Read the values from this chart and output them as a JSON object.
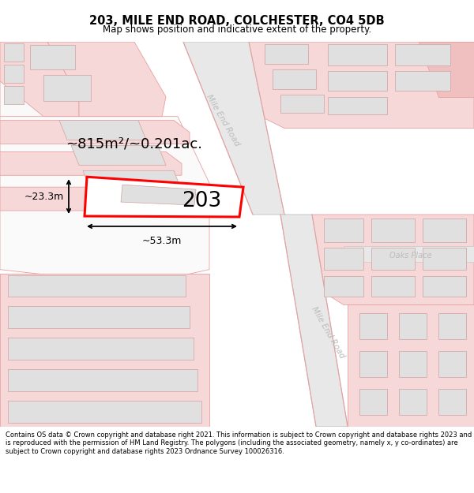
{
  "title": "203, MILE END ROAD, COLCHESTER, CO4 5DB",
  "subtitle": "Map shows position and indicative extent of the property.",
  "footer": "Contains OS data © Crown copyright and database right 2021. This information is subject to Crown copyright and database rights 2023 and is reproduced with the permission of HM Land Registry. The polygons (including the associated geometry, namely x, y co-ordinates) are subject to Crown copyright and database rights 2023 Ordnance Survey 100026316.",
  "area_text": "~815m²/~0.201ac.",
  "width_text": "~53.3m",
  "height_text": "~23.3m",
  "plot_number": "203",
  "road_name_upper": "Mile End Road",
  "road_name_lower": "Mile End Road",
  "road_name_oaks": "Oaks Place",
  "bg_color": "#ffffff",
  "road_fill": "#f7d8d8",
  "road_edge": "#e8a0a0",
  "bldg_fill": "#e0e0e0",
  "bldg_edge": "#d0a0a0",
  "highlight_fill": "#ffffff",
  "highlight_edge": "#ff0000",
  "dark_pink_fill": "#f0c0c0",
  "label_color": "#bbbbbb",
  "dim_color": "#000000"
}
